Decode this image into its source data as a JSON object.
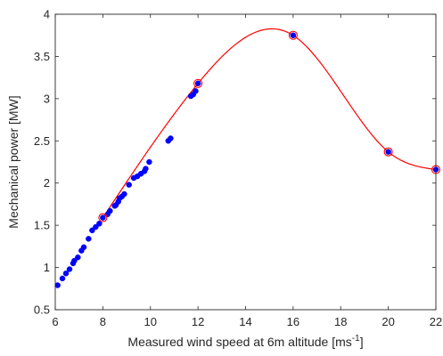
{
  "chart_data": {
    "type": "scatter",
    "xlabel": "Measured wind speed at 6m altitude [ms",
    "xlabel_sup": "-1",
    "xlabel_close": "]",
    "ylabel": "Mechanical power [MW]",
    "xlim": [
      6,
      22
    ],
    "ylim": [
      0.5,
      4
    ],
    "xticks": [
      6,
      8,
      10,
      12,
      14,
      16,
      18,
      20,
      22
    ],
    "yticks": [
      0.5,
      1,
      1.5,
      2,
      2.5,
      3,
      3.5,
      4
    ],
    "xtick_labels": [
      "6",
      "8",
      "10",
      "12",
      "14",
      "16",
      "18",
      "20",
      "22"
    ],
    "ytick_labels": [
      "0.5",
      "1",
      "1.5",
      "2",
      "2.5",
      "3",
      "3.5",
      "4"
    ],
    "grid": false,
    "series": [
      {
        "kind": "points",
        "color": "#0000ff",
        "x": [
          6.1,
          6.3,
          6.45,
          6.6,
          6.75,
          6.8,
          6.95,
          7.1,
          7.2,
          7.4,
          7.55,
          7.7,
          7.85,
          8.0,
          8.2,
          8.3,
          8.5,
          8.55,
          8.65,
          8.7,
          8.8,
          8.9,
          9.1,
          9.3,
          9.45,
          9.6,
          9.75,
          9.8,
          9.95,
          10.75,
          10.85,
          11.7,
          11.8,
          11.9,
          12.0,
          16.0,
          20.0,
          22.0
        ],
        "y": [
          0.79,
          0.87,
          0.93,
          0.98,
          1.05,
          1.08,
          1.12,
          1.2,
          1.24,
          1.34,
          1.44,
          1.48,
          1.52,
          1.59,
          1.63,
          1.67,
          1.73,
          1.74,
          1.78,
          1.82,
          1.84,
          1.87,
          1.98,
          2.06,
          2.08,
          2.11,
          2.14,
          2.17,
          2.25,
          2.5,
          2.53,
          3.03,
          3.05,
          3.09,
          3.18,
          3.75,
          2.37,
          2.16
        ]
      },
      {
        "kind": "markers",
        "color": "#ff0000",
        "x": [
          8.0,
          12.0,
          16.0,
          20.0,
          22.0
        ],
        "y": [
          1.59,
          3.18,
          3.75,
          2.37,
          2.16
        ]
      },
      {
        "kind": "curve",
        "color": "#ff0000",
        "x": [
          8,
          12,
          16,
          20,
          22
        ],
        "y": [
          1.59,
          3.18,
          3.75,
          2.37,
          2.16
        ]
      }
    ]
  }
}
